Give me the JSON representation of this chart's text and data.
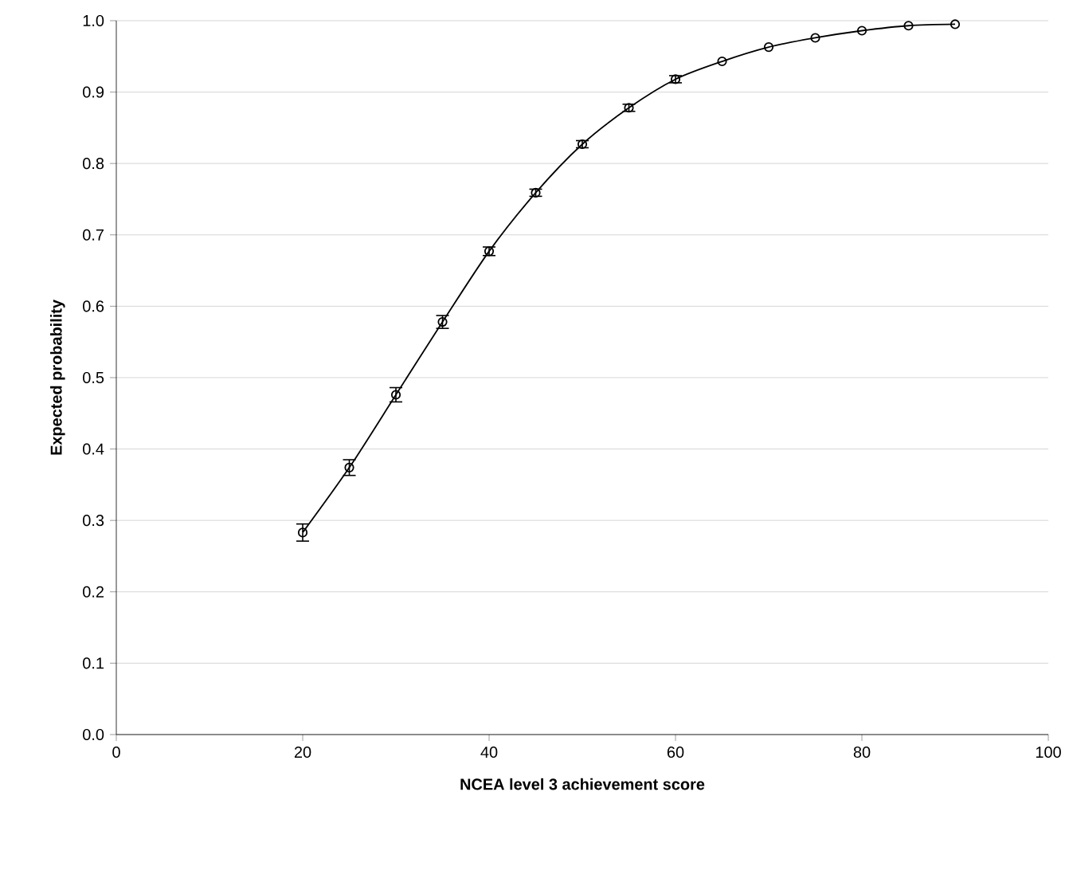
{
  "chart_data": {
    "type": "line",
    "xlabel": "NCEA level 3 achievement score",
    "ylabel": "Expected probability",
    "x": [
      20,
      25,
      30,
      35,
      40,
      45,
      50,
      55,
      60,
      65,
      70,
      75,
      80,
      85,
      90
    ],
    "series": [
      {
        "color": "#000000",
        "values": [
          0.283,
          0.374,
          0.476,
          0.578,
          0.677,
          0.759,
          0.827,
          0.878,
          0.918,
          0.943,
          0.963,
          0.976,
          0.986,
          0.993,
          0.995
        ],
        "errors": [
          0.012,
          0.011,
          0.01,
          0.009,
          0.006,
          0.005,
          0.005,
          0.005,
          0.005,
          null,
          null,
          null,
          null,
          null,
          null
        ]
      }
    ],
    "marker": "circle",
    "line_style": "solid",
    "grid": "y",
    "xlim": [
      0,
      100
    ],
    "xticks": [
      0,
      20,
      40,
      60,
      80,
      100
    ],
    "ylim": [
      0,
      1.0
    ],
    "yticks": [
      {
        "value": 0,
        "label": "0.0"
      },
      {
        "value": 0.1,
        "label": "0.1"
      },
      {
        "value": 0.2,
        "label": "0.2"
      },
      {
        "value": 0.3,
        "label": "0.3"
      },
      {
        "value": 0.4,
        "label": "0.4"
      },
      {
        "value": 0.5,
        "label": "0.5"
      },
      {
        "value": 0.6,
        "label": "0.6"
      },
      {
        "value": 0.7,
        "label": "0.7"
      },
      {
        "value": 0.8,
        "label": "0.8"
      },
      {
        "value": 0.9,
        "label": "0.9"
      },
      {
        "value": 1.0,
        "label": "1.0"
      }
    ]
  }
}
